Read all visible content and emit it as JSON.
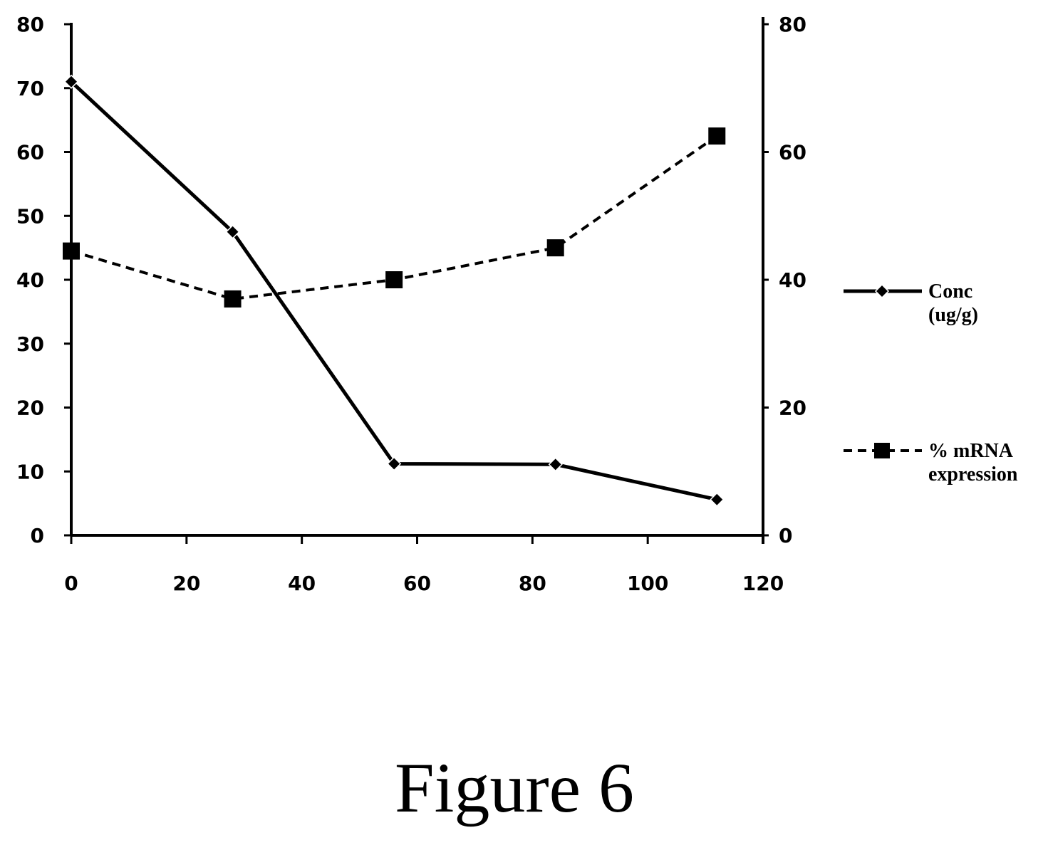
{
  "chart_data": {
    "type": "line",
    "title": "",
    "xlabel": "",
    "ylabel": "",
    "y2label": "",
    "x": [
      0,
      28,
      56,
      84,
      112
    ],
    "xlim": [
      0,
      120
    ],
    "x_ticks": [
      "0",
      "20",
      "40",
      "60",
      "80",
      "100",
      "120"
    ],
    "ylim": [
      0,
      80
    ],
    "y_ticks": [
      "0",
      "10",
      "20",
      "30",
      "40",
      "50",
      "60",
      "70",
      "80"
    ],
    "y2lim": [
      0,
      80
    ],
    "y2_ticks": [
      "0",
      "20",
      "40",
      "60",
      "80"
    ],
    "grid": false,
    "legend_position": "right",
    "series": [
      {
        "name_lines": [
          "Conc",
          "(ug/g)"
        ],
        "axis": "left",
        "marker": "diamond",
        "line_style": "solid",
        "color": "#000000",
        "values": [
          71,
          47.5,
          11.2,
          11.1,
          5.6
        ]
      },
      {
        "name_lines": [
          "% mRNA",
          "expression"
        ],
        "axis": "right",
        "marker": "square",
        "line_style": "dashed",
        "color": "#000000",
        "values": [
          44.5,
          37,
          40,
          45,
          62.5
        ]
      }
    ]
  },
  "caption": "Figure 6"
}
